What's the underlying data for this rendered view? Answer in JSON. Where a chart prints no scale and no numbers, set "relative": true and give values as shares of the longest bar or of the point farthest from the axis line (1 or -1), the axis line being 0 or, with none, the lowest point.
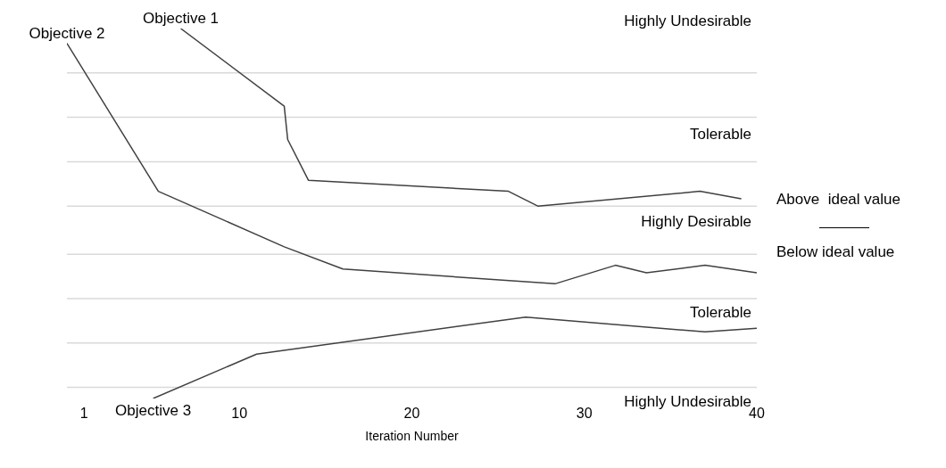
{
  "chart_data": {
    "type": "line",
    "relative": true,
    "xlabel": "Iteration Number",
    "xlim": [
      0,
      40
    ],
    "xticks": [
      1,
      10,
      20,
      30,
      40
    ],
    "legend": false,
    "marker": "none",
    "line_style": "solid",
    "series": [
      {
        "name": "Objective 1",
        "color": "#404040",
        "x": [
          6.6,
          12.6,
          12.8,
          14.0,
          25.6,
          27.3,
          36.7,
          39.1
        ],
        "values": [
          1.0,
          0.79,
          0.7,
          0.59,
          0.56,
          0.52,
          0.56,
          0.54
        ]
      },
      {
        "name": "Objective 2",
        "color": "#404040",
        "x": [
          0,
          5.3,
          12.6,
          16.0,
          28.3,
          31.8,
          33.6,
          37.0,
          40
        ],
        "values": [
          0.96,
          0.56,
          0.41,
          0.35,
          0.31,
          0.36,
          0.34,
          0.36,
          0.34
        ]
      },
      {
        "name": "Objective 3",
        "color": "#404040",
        "x": [
          5.0,
          11.0,
          26.6,
          37.0,
          40
        ],
        "values": [
          0,
          0.12,
          0.22,
          0.18,
          0.19
        ]
      }
    ],
    "ref_lines": [
      {
        "axis": "y",
        "value": 0.88,
        "color": "#d9d9d9"
      },
      {
        "axis": "y",
        "value": 0.76,
        "color": "#d9d9d9"
      },
      {
        "axis": "y",
        "value": 0.64,
        "color": "#d9d9d9"
      },
      {
        "axis": "y",
        "value": 0.52,
        "color": "#d9d9d9"
      },
      {
        "axis": "y",
        "value": 0.39,
        "color": "#d9d9d9"
      },
      {
        "axis": "y",
        "value": 0.27,
        "color": "#d9d9d9"
      },
      {
        "axis": "y",
        "value": 0.15,
        "color": "#d9d9d9"
      },
      {
        "axis": "y",
        "value": 0.03,
        "color": "#d9d9d9"
      }
    ],
    "annotations": [
      "Above  ideal value",
      "Below ideal value",
      "Highly Undesirable",
      "Tolerable",
      "Highly Desirable",
      "Tolerable",
      "Highly Undesirable"
    ]
  }
}
